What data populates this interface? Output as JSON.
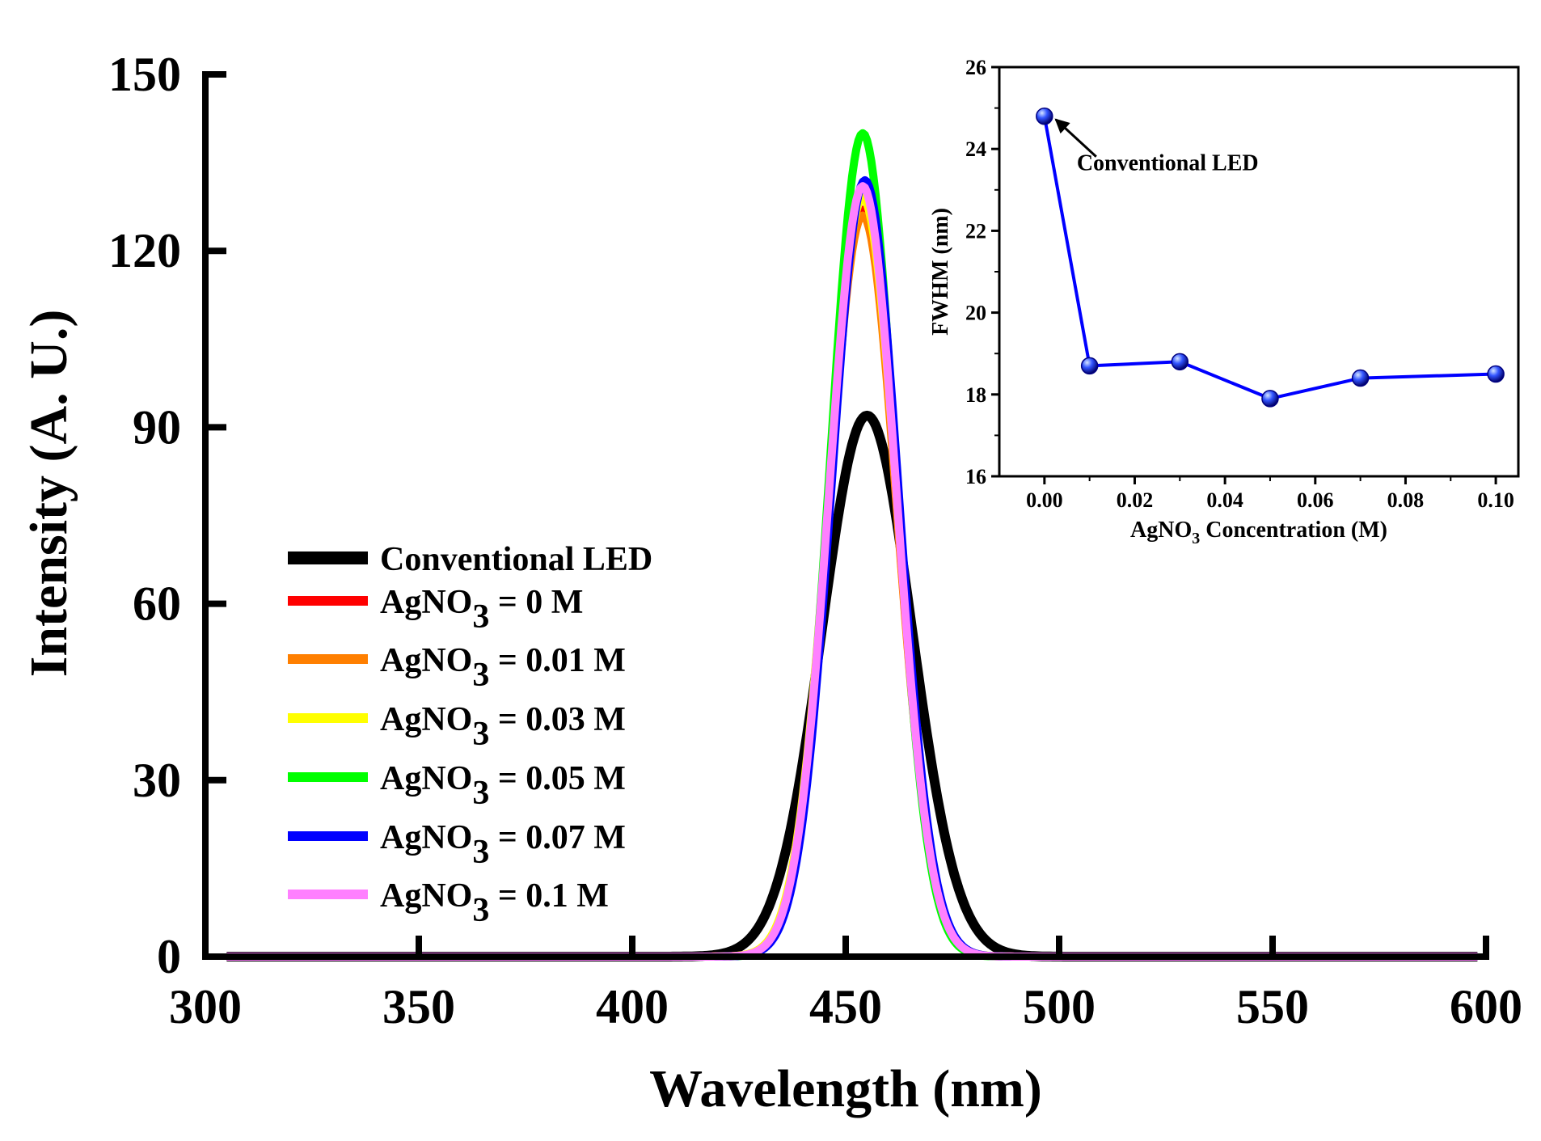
{
  "chart_data": [
    {
      "type": "line",
      "role": "main",
      "title": "",
      "xlabel": "Wavelength (nm)",
      "ylabel": "Intensity (A. U.)",
      "xlim": [
        300,
        600
      ],
      "ylim": [
        0,
        150
      ],
      "xticks": [
        "300",
        "350",
        "400",
        "450",
        "500",
        "550",
        "600"
      ],
      "yticks": [
        "0",
        "30",
        "60",
        "90",
        "120",
        "150"
      ],
      "legend_position": "left-center",
      "series": [
        {
          "name": "Conventional LED",
          "label_main": "Conventional LED",
          "label_sub": "",
          "label_tail": "",
          "color": "#000000",
          "peak_nm": 455,
          "peak": 92,
          "fwhm": 24.8
        },
        {
          "name": "AgNO3 = 0 M",
          "label_main": "AgNO",
          "label_sub": "3",
          "label_tail": " = 0 M",
          "color": "#ff0000",
          "peak_nm": 454,
          "peak": 127,
          "fwhm": 18.7
        },
        {
          "name": "AgNO3 = 0.01 M",
          "label_main": "AgNO",
          "label_sub": "3",
          "label_tail": " = 0.01 M",
          "color": "#ff7f00",
          "peak_nm": 454,
          "peak": 126,
          "fwhm": 18.7
        },
        {
          "name": "AgNO3 = 0.03 M",
          "label_main": "AgNO",
          "label_sub": "3",
          "label_tail": " = 0.03 M",
          "color": "#ffff00",
          "peak_nm": 454,
          "peak": 129,
          "fwhm": 18.8
        },
        {
          "name": "AgNO3 = 0.05 M",
          "label_main": "AgNO",
          "label_sub": "3",
          "label_tail": " = 0.05 M",
          "color": "#00ff00",
          "peak_nm": 454,
          "peak": 140,
          "fwhm": 17.9
        },
        {
          "name": "AgNO3 = 0.07 M",
          "label_main": "AgNO",
          "label_sub": "3",
          "label_tail": " = 0.07 M",
          "color": "#0000ff",
          "peak_nm": 454.5,
          "peak": 132,
          "fwhm": 18.4
        },
        {
          "name": "AgNO3 = 0.1 M",
          "label_main": "AgNO",
          "label_sub": "3",
          "label_tail": " = 0.1 M",
          "color": "#ff80ff",
          "peak_nm": 454,
          "peak": 131,
          "fwhm": 18.5
        }
      ]
    },
    {
      "type": "line",
      "role": "inset",
      "title": "",
      "xlabel_main": "AgNO",
      "xlabel_sub": "3",
      "xlabel_tail": " Concentration (M)",
      "ylabel": "FWHM (nm)",
      "xlim": [
        -0.01,
        0.105
      ],
      "ylim": [
        16,
        26
      ],
      "xticks": [
        "0.00",
        "0.02",
        "0.04",
        "0.06",
        "0.08",
        "0.10"
      ],
      "yticks": [
        "16",
        "18",
        "20",
        "22",
        "24",
        "26"
      ],
      "x": [
        0.0,
        0.01,
        0.03,
        0.05,
        0.07,
        0.1
      ],
      "y": [
        24.8,
        18.7,
        18.8,
        17.9,
        18.4,
        18.5
      ],
      "color": "#0000ff",
      "annotation": "Conventional LED"
    }
  ]
}
